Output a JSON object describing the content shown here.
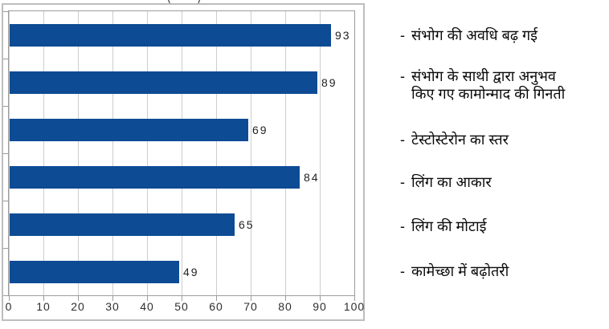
{
  "clipped_title_fragment": "( )",
  "chart_data": {
    "type": "bar",
    "orientation": "horizontal",
    "title": "",
    "xlabel": "",
    "ylabel": "",
    "xlim": [
      0,
      100
    ],
    "x_ticks": [
      0,
      10,
      20,
      30,
      40,
      50,
      60,
      70,
      80,
      90,
      100
    ],
    "grid": "vertical",
    "data_labels_shown": true,
    "categories": [
      "संभोग की अवधि बढ़ गई",
      "संभोग के साथी द्वारा अनुभव\nकिए गए कामोन्माद की गिनती",
      "टेस्टोस्टेरोन का स्तर",
      "लिंग का आकार",
      "लिंग की मोटाई",
      "कामेच्छा में बढ़ोतरी"
    ],
    "values": [
      93,
      89,
      69,
      84,
      65,
      49
    ]
  },
  "right_labels": {
    "bullet": "-"
  },
  "colors": {
    "bar": "#0d4b94",
    "grid_line": "#cdcdcd",
    "plot_border": "#9c9c9c",
    "chart_frame": "#bdbdbd",
    "tick_text": "#2e2e2e",
    "value_text": "#222222",
    "label_text": "#0a0a0a"
  }
}
